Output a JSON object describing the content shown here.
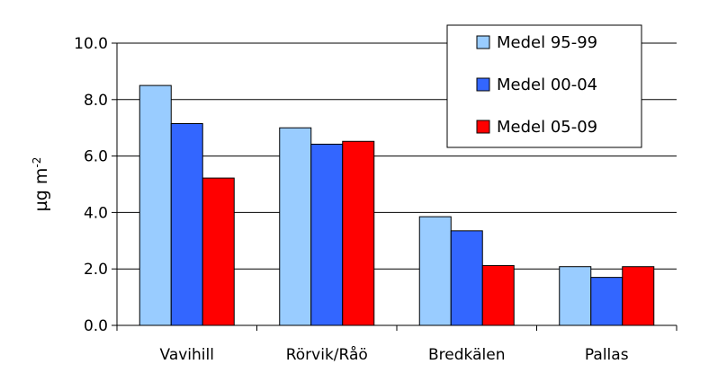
{
  "chart_data": {
    "type": "bar",
    "categories": [
      "Vavihill",
      "Rörvik/Råö",
      "Bredkälen",
      "Pallas"
    ],
    "series": [
      {
        "name": "Medel 95-99",
        "color": "#99ccff",
        "values": [
          8.5,
          7.0,
          3.85,
          2.08
        ]
      },
      {
        "name": "Medel 00-04",
        "color": "#3366ff",
        "values": [
          7.15,
          6.42,
          3.35,
          1.7
        ]
      },
      {
        "name": "Medel 05-09",
        "color": "#ff0000",
        "values": [
          5.22,
          6.52,
          2.12,
          2.08
        ]
      }
    ],
    "ylabel": "µg m",
    "ylabel_superscript": "-2",
    "ylim": [
      0,
      10
    ],
    "yticks": [
      "0.0",
      "2.0",
      "4.0",
      "6.0",
      "8.0",
      "10.0"
    ],
    "grid": true,
    "legend_position": "top-right"
  }
}
